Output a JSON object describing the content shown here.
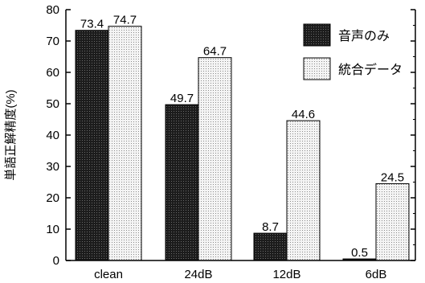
{
  "chart_data": {
    "type": "bar",
    "categories": [
      "clean",
      "24dB",
      "12dB",
      "6dB"
    ],
    "series": [
      {
        "name": "音声のみ",
        "values": [
          73.4,
          49.7,
          8.7,
          0.5
        ],
        "labels": [
          "73.4",
          "49.7",
          "8.7",
          "0.5"
        ],
        "color": "#2b2b2b",
        "pattern": "dark-crosshatch"
      },
      {
        "name": "統合データ",
        "values": [
          74.7,
          64.7,
          44.6,
          24.5
        ],
        "labels": [
          "74.7",
          "64.7",
          "44.6",
          "24.5"
        ],
        "color": "#cfcfcf",
        "pattern": "light-dots"
      }
    ],
    "title": "",
    "xlabel": "",
    "ylabel": "単語正解精度(%)",
    "ylim": [
      0,
      80
    ],
    "yticks": [
      0,
      10,
      20,
      30,
      40,
      50,
      60,
      70,
      80
    ],
    "grid": false,
    "legend_position": "top-right"
  }
}
